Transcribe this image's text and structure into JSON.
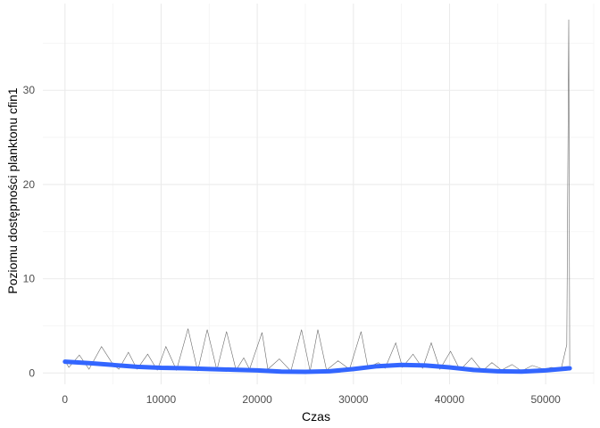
{
  "chart_data": {
    "type": "line",
    "title": "",
    "xlabel": "Czas",
    "ylabel": "Poziomu dostępności planktonu cfin1",
    "xlim": [
      -2300,
      55000
    ],
    "ylim": [
      -1.2,
      39.2
    ],
    "x_ticks": [
      0,
      10000,
      20000,
      30000,
      40000,
      50000
    ],
    "x_tick_labels": [
      "0",
      "10000",
      "20000",
      "30000",
      "40000",
      "50000"
    ],
    "y_ticks": [
      0,
      10,
      20,
      30
    ],
    "y_tick_labels": [
      "0",
      "10",
      "20",
      "30"
    ],
    "grid": true,
    "series": [
      {
        "kind": "raw_line",
        "color": "#5a5a5a",
        "x": [
          0,
          400,
          1500,
          2500,
          3800,
          5000,
          5600,
          6600,
          7500,
          8600,
          9600,
          10500,
          11600,
          12800,
          13800,
          14800,
          15800,
          16800,
          17800,
          18600,
          19200,
          20500,
          21100,
          22300,
          23500,
          24600,
          25500,
          26300,
          27200,
          28400,
          29600,
          30800,
          31500,
          32600,
          33300,
          34400,
          35100,
          36200,
          37200,
          38100,
          39000,
          40100,
          41100,
          42300,
          43400,
          44400,
          45400,
          46500,
          47500,
          48600,
          49800,
          50600,
          51600,
          52200,
          52400,
          52500
        ],
        "y": [
          1.3,
          0.6,
          1.9,
          0.4,
          2.8,
          0.9,
          0.4,
          2.2,
          0.4,
          2.0,
          0.3,
          2.8,
          0.3,
          4.7,
          0.2,
          4.6,
          0.3,
          4.4,
          0.3,
          1.6,
          0.4,
          4.3,
          0.4,
          1.5,
          0.2,
          4.6,
          0.2,
          4.6,
          0.3,
          1.3,
          0.4,
          4.4,
          0.6,
          1.1,
          0.5,
          3.2,
          0.6,
          2.0,
          0.5,
          3.2,
          0.4,
          2.3,
          0.3,
          1.6,
          0.2,
          1.1,
          0.3,
          0.9,
          0.2,
          0.8,
          0.4,
          0.6,
          0.4,
          3.0,
          37.5,
          0.8
        ]
      },
      {
        "kind": "smooth",
        "color": "#3366ff",
        "x": [
          0,
          2500,
          5000,
          7500,
          10000,
          12500,
          15000,
          17500,
          20000,
          22500,
          25000,
          27500,
          30000,
          32500,
          35000,
          37500,
          40000,
          42500,
          45000,
          47500,
          50000,
          52500
        ],
        "y": [
          1.2,
          1.05,
          0.85,
          0.65,
          0.55,
          0.5,
          0.42,
          0.35,
          0.28,
          0.15,
          0.12,
          0.18,
          0.42,
          0.72,
          0.85,
          0.8,
          0.6,
          0.32,
          0.18,
          0.15,
          0.28,
          0.5
        ]
      }
    ]
  }
}
